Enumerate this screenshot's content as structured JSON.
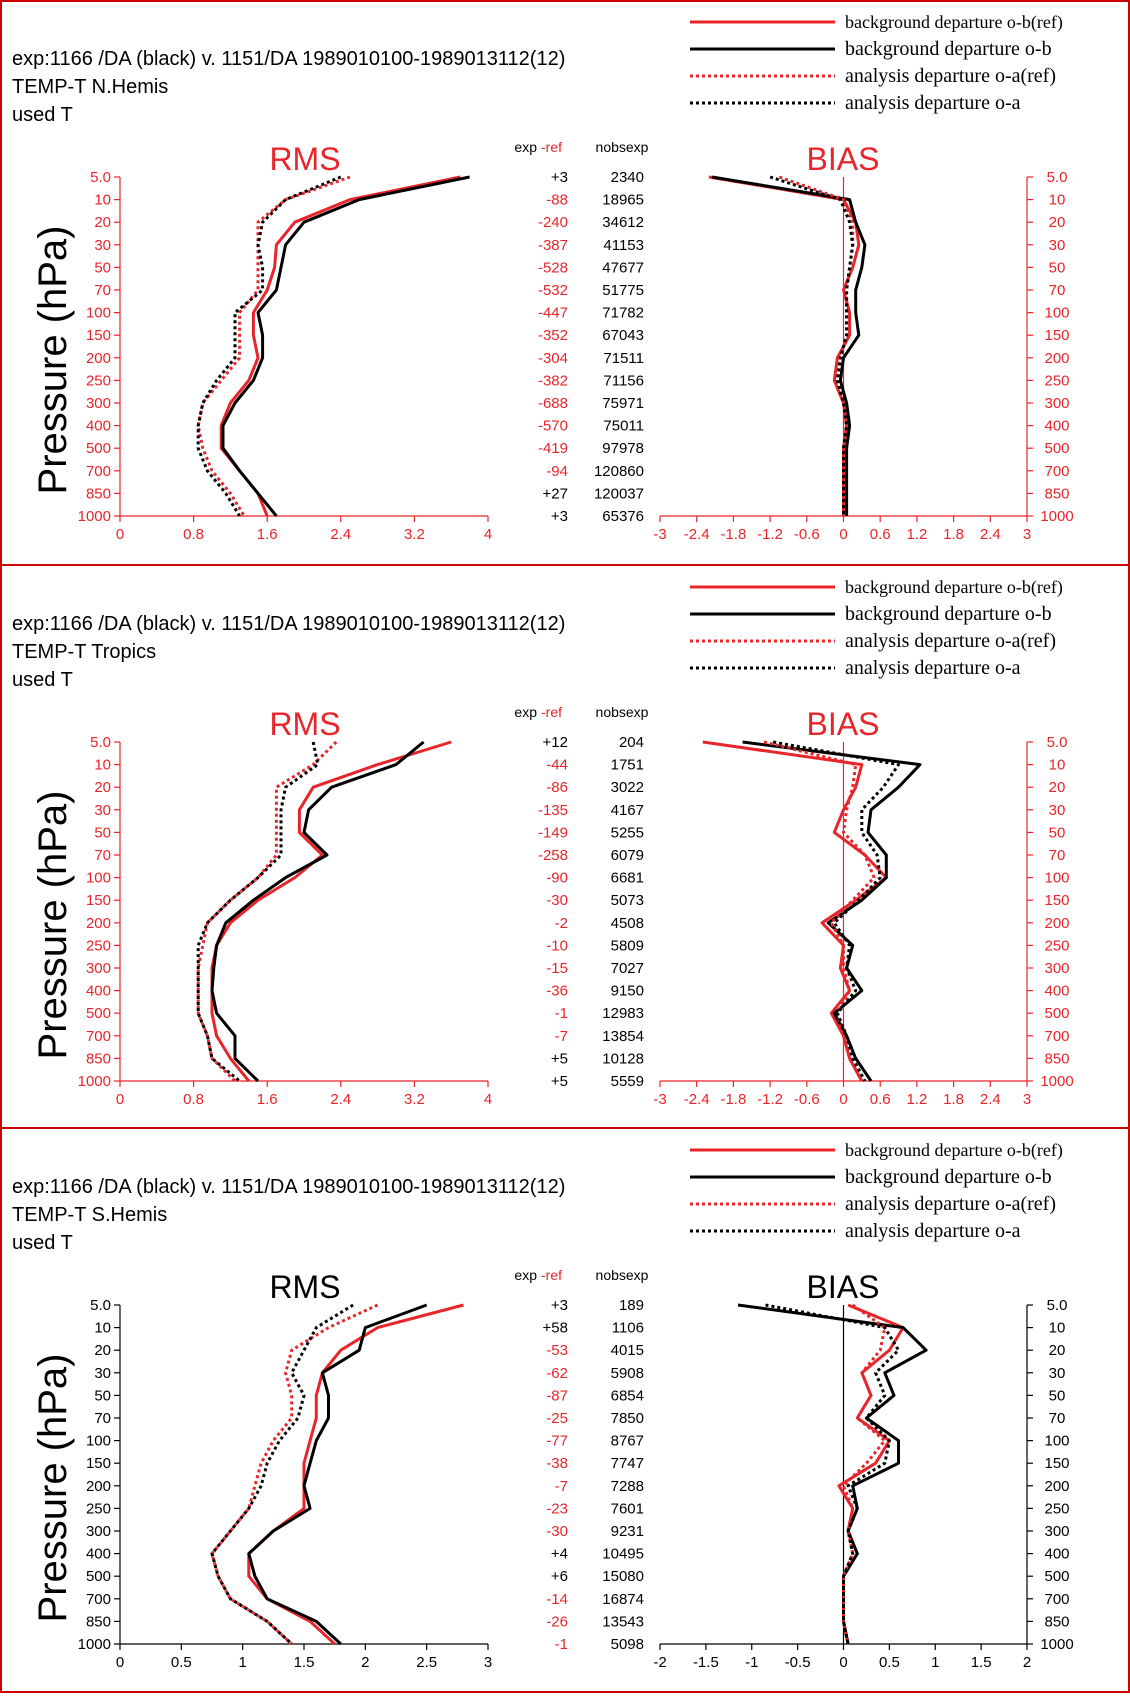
{
  "colors": {
    "red": "#e8252a",
    "black": "#000000",
    "frame": "#cc0000"
  },
  "pressure_levels": [
    "5.0",
    "10",
    "20",
    "30",
    "50",
    "70",
    "100",
    "150",
    "200",
    "250",
    "300",
    "400",
    "500",
    "700",
    "850",
    "1000"
  ],
  "legend": [
    {
      "label": "background departure o-b(ref)",
      "color": "red",
      "style": "solid"
    },
    {
      "label": "background departure o-b",
      "color": "black",
      "style": "solid"
    },
    {
      "label": "analysis departure o-a(ref)",
      "color": "red",
      "style": "dotted"
    },
    {
      "label": "analysis departure o-a",
      "color": "black",
      "style": "dotted"
    }
  ],
  "header_labels": {
    "exp": "exp",
    "ref": "-ref",
    "nobs": "nobsexp",
    "ylabel": "Pressure (hPa)"
  },
  "panels": [
    {
      "title_line1": "exp:1166 /DA (black)  v. 1151/DA 1989010100-1989013112(12)",
      "title_line2": "TEMP-T  N.Hemis",
      "title_line3": "used T",
      "rms_title": "RMS",
      "bias_title": "BIAS",
      "title_color": "red",
      "axis_color": "red",
      "diffs": [
        "+3",
        "-88",
        "-240",
        "-387",
        "-528",
        "-532",
        "-447",
        "-352",
        "-304",
        "-382",
        "-688",
        "-570",
        "-419",
        "-94",
        "+27",
        "+3"
      ],
      "nobs": [
        "2340",
        "18965",
        "34612",
        "41153",
        "47677",
        "51775",
        "71782",
        "67043",
        "71511",
        "71156",
        "75971",
        "75011",
        "97978",
        "120860",
        "120037",
        "65376"
      ]
    },
    {
      "title_line1": "exp:1166 /DA (black)  v. 1151/DA 1989010100-1989013112(12)",
      "title_line2": "TEMP-T  Tropics",
      "title_line3": "used T",
      "rms_title": "RMS",
      "bias_title": "BIAS",
      "title_color": "red",
      "axis_color": "red",
      "diffs": [
        "+12",
        "-44",
        "-86",
        "-135",
        "-149",
        "-258",
        "-90",
        "-30",
        "-2",
        "-10",
        "-15",
        "-36",
        "-1",
        "-7",
        "+5",
        "+5"
      ],
      "nobs": [
        "204",
        "1751",
        "3022",
        "4167",
        "5255",
        "6079",
        "6681",
        "5073",
        "4508",
        "5809",
        "7027",
        "9150",
        "12983",
        "13854",
        "10128",
        "5559"
      ]
    },
    {
      "title_line1": "exp:1166 /DA (black)  v. 1151/DA 1989010100-1989013112(12)",
      "title_line2": "TEMP-T  S.Hemis",
      "title_line3": "used T",
      "rms_title": "RMS",
      "bias_title": "BIAS",
      "title_color": "black",
      "axis_color": "black",
      "diffs": [
        "+3",
        "+58",
        "-53",
        "-62",
        "-87",
        "-25",
        "-77",
        "-38",
        "-7",
        "-23",
        "-30",
        "+4",
        "+6",
        "-14",
        "-26",
        "-1"
      ],
      "nobs": [
        "189",
        "1106",
        "4015",
        "5908",
        "6854",
        "7850",
        "8767",
        "7747",
        "7288",
        "7601",
        "9231",
        "10495",
        "15080",
        "16874",
        "13543",
        "5098"
      ]
    }
  ],
  "chart_data": [
    {
      "type": "line",
      "region": "N.Hemis",
      "title": "RMS",
      "ylabel": "Pressure (hPa)",
      "y": [
        "5.0",
        "10",
        "20",
        "30",
        "50",
        "70",
        "100",
        "150",
        "200",
        "250",
        "300",
        "400",
        "500",
        "700",
        "850",
        "1000"
      ],
      "xlim": [
        0,
        4
      ],
      "xticks": [
        "0",
        "0.8",
        "1.6",
        "2.4",
        "3.2",
        "4"
      ],
      "series": [
        {
          "name": "background departure o-b(ref)",
          "values": [
            3.7,
            2.5,
            1.9,
            1.7,
            1.68,
            1.6,
            1.45,
            1.45,
            1.5,
            1.4,
            1.2,
            1.1,
            1.1,
            1.3,
            1.5,
            1.6
          ]
        },
        {
          "name": "background departure o-b",
          "values": [
            3.8,
            2.6,
            2.0,
            1.8,
            1.75,
            1.7,
            1.5,
            1.55,
            1.55,
            1.45,
            1.25,
            1.12,
            1.12,
            1.3,
            1.5,
            1.7
          ]
        },
        {
          "name": "analysis departure o-a(ref)",
          "values": [
            2.5,
            1.8,
            1.5,
            1.5,
            1.5,
            1.5,
            1.3,
            1.3,
            1.3,
            1.1,
            0.9,
            0.85,
            0.9,
            1.0,
            1.2,
            1.35
          ]
        },
        {
          "name": "analysis departure o-a",
          "values": [
            2.4,
            1.8,
            1.55,
            1.5,
            1.55,
            1.55,
            1.25,
            1.25,
            1.25,
            1.05,
            0.9,
            0.85,
            0.85,
            0.95,
            1.15,
            1.3
          ]
        }
      ]
    },
    {
      "type": "line",
      "region": "N.Hemis",
      "title": "BIAS",
      "ylabel": "Pressure (hPa)",
      "y": [
        "5.0",
        "10",
        "20",
        "30",
        "50",
        "70",
        "100",
        "150",
        "200",
        "250",
        "300",
        "400",
        "500",
        "700",
        "850",
        "1000"
      ],
      "xlim": [
        -3,
        3
      ],
      "xticks": [
        "-3",
        "-2.4",
        "-1.8",
        "-1.2",
        "-0.6",
        "0",
        "0.6",
        "1.2",
        "1.8",
        "2.4",
        "3"
      ],
      "series": [
        {
          "name": "background departure o-b(ref)",
          "values": [
            -2.2,
            0.0,
            0.2,
            0.25,
            0.15,
            0.0,
            0.1,
            0.1,
            -0.1,
            -0.15,
            0.0,
            0.05,
            0.0,
            0.0,
            0.0,
            0.0
          ]
        },
        {
          "name": "background departure o-b",
          "values": [
            -2.15,
            0.1,
            0.2,
            0.35,
            0.3,
            0.2,
            0.2,
            0.25,
            0.0,
            -0.05,
            0.05,
            0.1,
            0.05,
            0.05,
            0.05,
            0.05
          ]
        },
        {
          "name": "analysis departure o-a(ref)",
          "values": [
            -1.05,
            0.0,
            0.15,
            0.15,
            0.1,
            0.05,
            0.05,
            0.05,
            -0.05,
            -0.1,
            0.0,
            0.05,
            0.0,
            0.0,
            0.0,
            0.0
          ]
        },
        {
          "name": "analysis departure o-a",
          "values": [
            -1.2,
            -0.05,
            0.1,
            0.15,
            0.1,
            0.05,
            0.05,
            0.05,
            -0.05,
            -0.1,
            0.0,
            0.05,
            0.0,
            0.0,
            0.0,
            0.0
          ]
        }
      ]
    },
    {
      "type": "line",
      "region": "Tropics",
      "title": "RMS",
      "ylabel": "Pressure (hPa)",
      "y": [
        "5.0",
        "10",
        "20",
        "30",
        "50",
        "70",
        "100",
        "150",
        "200",
        "250",
        "300",
        "400",
        "500",
        "700",
        "850",
        "1000"
      ],
      "xlim": [
        0,
        4
      ],
      "xticks": [
        "0",
        "0.8",
        "1.6",
        "2.4",
        "3.2",
        "4"
      ],
      "series": [
        {
          "name": "background departure o-b(ref)",
          "values": [
            3.6,
            2.8,
            2.1,
            1.95,
            1.95,
            2.2,
            1.9,
            1.5,
            1.2,
            1.05,
            1.0,
            1.0,
            1.0,
            1.05,
            1.2,
            1.4
          ]
        },
        {
          "name": "background departure o-b",
          "values": [
            3.3,
            3.0,
            2.3,
            2.05,
            2.0,
            2.25,
            1.8,
            1.45,
            1.15,
            1.05,
            1.02,
            1.0,
            1.05,
            1.25,
            1.25,
            1.5
          ]
        },
        {
          "name": "analysis departure o-a(ref)",
          "values": [
            2.35,
            2.1,
            1.7,
            1.7,
            1.7,
            1.7,
            1.5,
            1.2,
            0.95,
            0.9,
            0.85,
            0.85,
            0.85,
            0.95,
            1.0,
            1.25
          ]
        },
        {
          "name": "analysis departure o-a",
          "values": [
            2.1,
            2.15,
            1.8,
            1.75,
            1.75,
            1.75,
            1.5,
            1.2,
            0.95,
            0.85,
            0.85,
            0.85,
            0.85,
            0.95,
            1.0,
            1.3
          ]
        }
      ]
    },
    {
      "type": "line",
      "region": "Tropics",
      "title": "BIAS",
      "ylabel": "Pressure (hPa)",
      "y": [
        "5.0",
        "10",
        "20",
        "30",
        "50",
        "70",
        "100",
        "150",
        "200",
        "250",
        "300",
        "400",
        "500",
        "700",
        "850",
        "1000"
      ],
      "xlim": [
        -3,
        3
      ],
      "xticks": [
        "-3",
        "-2.4",
        "-1.8",
        "-1.2",
        "-0.6",
        "0",
        "0.6",
        "1.2",
        "1.8",
        "2.4",
        "3"
      ],
      "series": [
        {
          "name": "background departure o-b(ref)",
          "values": [
            -2.3,
            0.3,
            0.2,
            0.0,
            -0.15,
            0.35,
            0.7,
            0.2,
            -0.35,
            0.0,
            -0.05,
            0.1,
            -0.2,
            0.0,
            0.1,
            0.3
          ]
        },
        {
          "name": "background departure o-b",
          "values": [
            -1.65,
            1.25,
            0.9,
            0.45,
            0.4,
            0.7,
            0.7,
            0.3,
            -0.25,
            0.15,
            0.05,
            0.3,
            -0.15,
            0.05,
            0.2,
            0.45
          ]
        },
        {
          "name": "analysis departure o-a(ref)",
          "values": [
            -1.3,
            0.2,
            0.15,
            0.05,
            0.0,
            0.35,
            0.5,
            0.15,
            -0.2,
            0.0,
            0.0,
            0.1,
            -0.1,
            0.0,
            0.1,
            0.3
          ]
        },
        {
          "name": "analysis departure o-a",
          "values": [
            -1.15,
            0.9,
            0.65,
            0.3,
            0.3,
            0.55,
            0.6,
            0.25,
            -0.15,
            0.1,
            0.05,
            0.2,
            -0.1,
            0.05,
            0.15,
            0.35
          ]
        }
      ]
    },
    {
      "type": "line",
      "region": "S.Hemis",
      "title": "RMS",
      "ylabel": "Pressure (hPa)",
      "y": [
        "5.0",
        "10",
        "20",
        "30",
        "50",
        "70",
        "100",
        "150",
        "200",
        "250",
        "300",
        "400",
        "500",
        "700",
        "850",
        "1000"
      ],
      "xlim": [
        0,
        3
      ],
      "xticks": [
        "0",
        "0.5",
        "1",
        "1.5",
        "2",
        "2.5",
        "3"
      ],
      "series": [
        {
          "name": "background departure o-b(ref)",
          "values": [
            2.8,
            2.1,
            1.8,
            1.65,
            1.6,
            1.6,
            1.55,
            1.5,
            1.5,
            1.5,
            1.25,
            1.05,
            1.05,
            1.2,
            1.55,
            1.75
          ]
        },
        {
          "name": "background departure o-b",
          "values": [
            2.5,
            2.0,
            1.95,
            1.65,
            1.7,
            1.7,
            1.6,
            1.55,
            1.5,
            1.55,
            1.25,
            1.05,
            1.1,
            1.2,
            1.6,
            1.8
          ]
        },
        {
          "name": "analysis departure o-a(ref)",
          "values": [
            2.1,
            1.7,
            1.4,
            1.35,
            1.4,
            1.4,
            1.25,
            1.15,
            1.1,
            1.05,
            0.9,
            0.75,
            0.8,
            0.9,
            1.2,
            1.4
          ]
        },
        {
          "name": "analysis departure o-a",
          "values": [
            1.9,
            1.6,
            1.5,
            1.4,
            1.5,
            1.45,
            1.3,
            1.2,
            1.15,
            1.05,
            0.9,
            0.75,
            0.8,
            0.9,
            1.2,
            1.4
          ]
        }
      ]
    },
    {
      "type": "line",
      "region": "S.Hemis",
      "title": "BIAS",
      "ylabel": "Pressure (hPa)",
      "y": [
        "5.0",
        "10",
        "20",
        "30",
        "50",
        "70",
        "100",
        "150",
        "200",
        "250",
        "300",
        "400",
        "500",
        "700",
        "850",
        "1000"
      ],
      "xlim": [
        -2,
        2
      ],
      "xticks": [
        "-2",
        "-1.5",
        "-1",
        "-0.5",
        "0",
        "0.5",
        "1",
        "1.5",
        "2"
      ],
      "series": [
        {
          "name": "background departure o-b(ref)",
          "values": [
            0.05,
            0.65,
            0.5,
            0.2,
            0.3,
            0.15,
            0.5,
            0.35,
            -0.05,
            0.1,
            0.05,
            0.15,
            0.0,
            0.0,
            0.0,
            0.05
          ]
        },
        {
          "name": "background departure o-b",
          "values": [
            -1.15,
            0.65,
            0.9,
            0.45,
            0.55,
            0.25,
            0.6,
            0.6,
            0.1,
            0.15,
            0.05,
            0.15,
            0.0,
            0.0,
            0.0,
            0.05
          ]
        },
        {
          "name": "analysis departure o-a(ref)",
          "values": [
            0.1,
            0.45,
            0.4,
            0.2,
            0.3,
            0.15,
            0.45,
            0.25,
            0.0,
            0.1,
            0.05,
            0.1,
            0.0,
            0.0,
            0.0,
            0.05
          ]
        },
        {
          "name": "analysis departure o-a",
          "values": [
            -0.85,
            0.45,
            0.6,
            0.35,
            0.45,
            0.25,
            0.5,
            0.45,
            0.05,
            0.15,
            0.05,
            0.1,
            0.0,
            0.0,
            0.0,
            0.05
          ]
        }
      ]
    }
  ]
}
